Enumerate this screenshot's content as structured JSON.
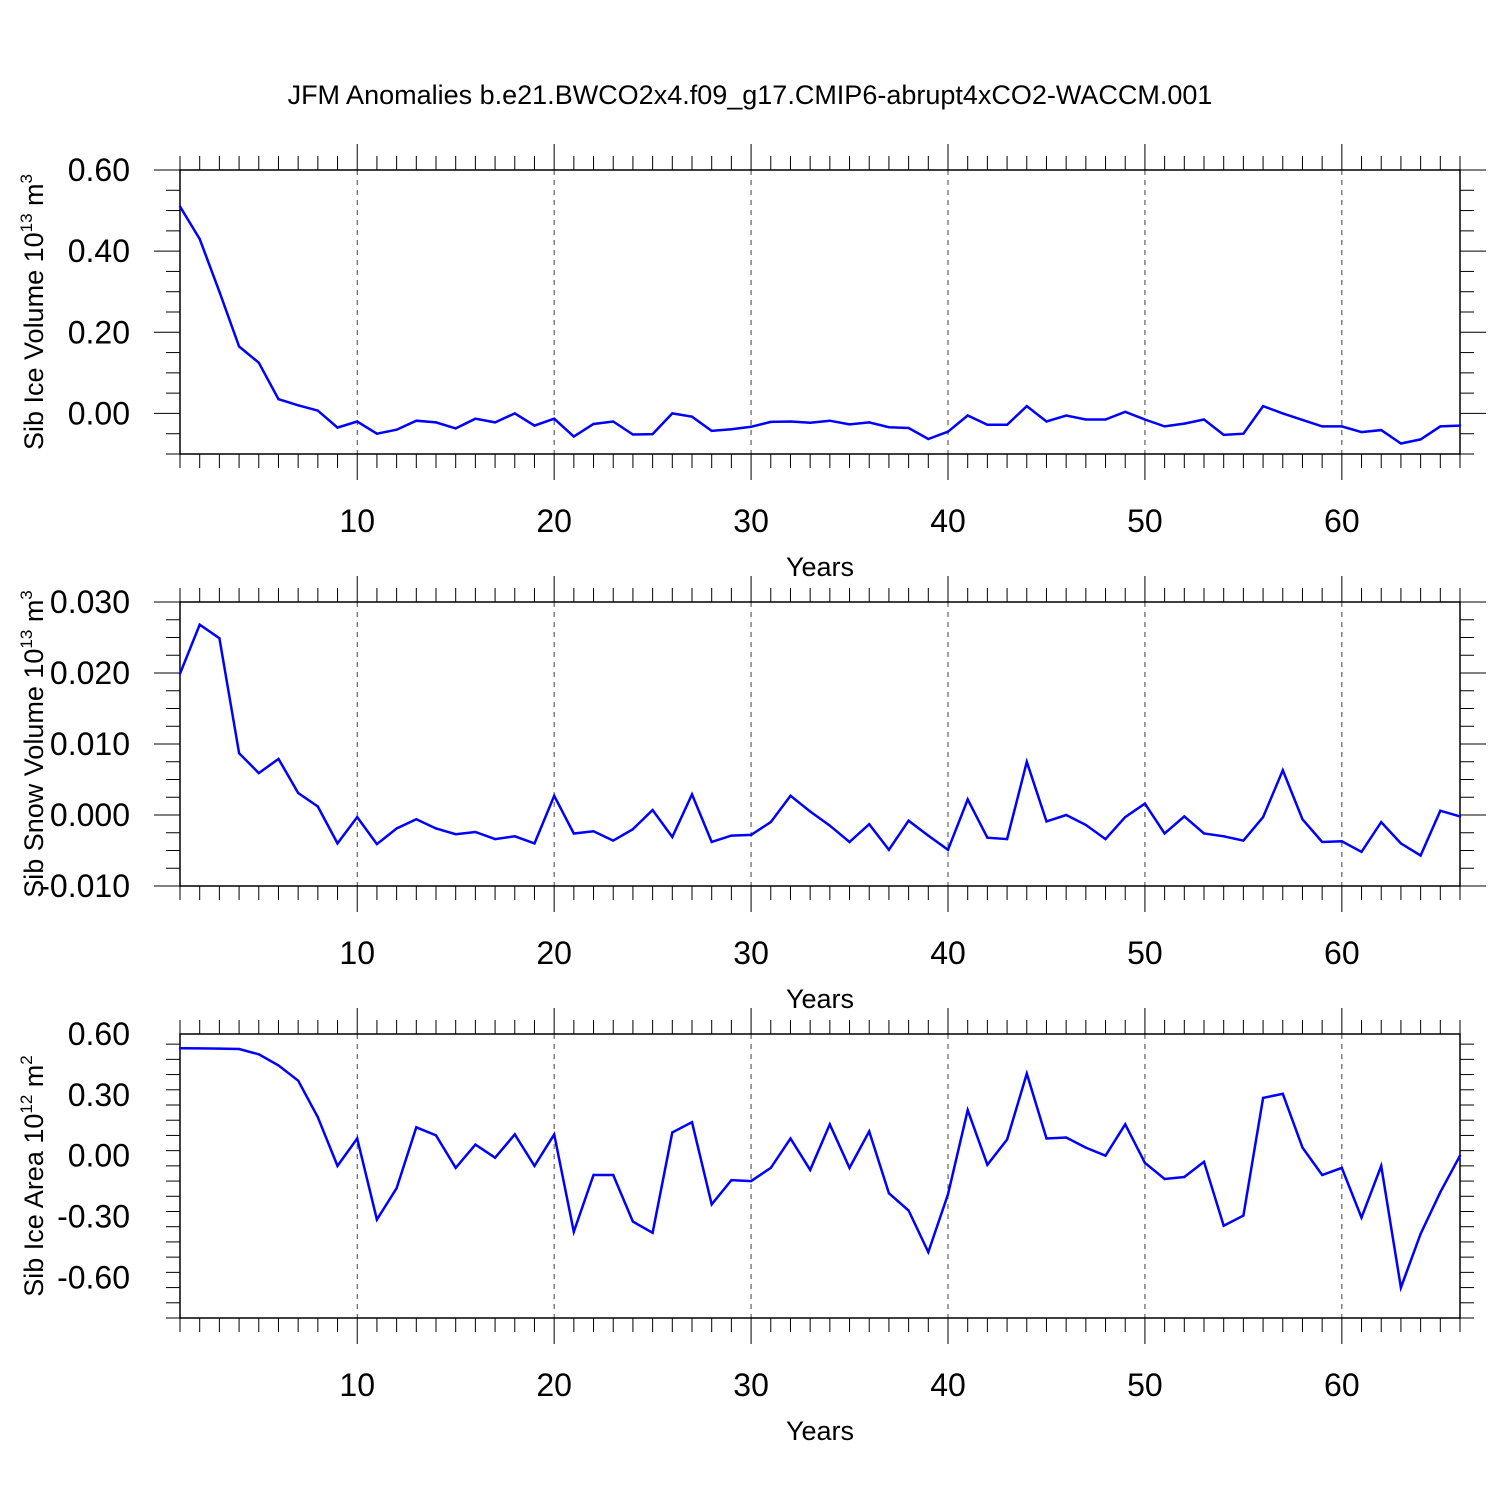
{
  "title": "JFM Anomalies b.e21.BWCO2x4.f09_g17.CMIP6-abrupt4xCO2-WACCM.001",
  "chart_data": [
    {
      "type": "line",
      "title": "",
      "xlabel": "Years",
      "ylabel": "Sib Ice Volume 10",
      "ylabel_sup": "13",
      "ylabel_unit": " m",
      "ylabel_unit_sup": "3",
      "xlim": [
        1,
        66
      ],
      "ylim": [
        -0.1,
        0.6
      ],
      "xticks": [
        10,
        20,
        30,
        40,
        50,
        60
      ],
      "xtick_labels": [
        "10",
        "20",
        "30",
        "40",
        "50",
        "60"
      ],
      "yticks": [
        0.6,
        0.4,
        0.2,
        0.0
      ],
      "ytick_labels": [
        "0.60",
        "0.40",
        "0.20",
        "0.00"
      ],
      "grid": "vertical dashed at labeled x ticks",
      "line_color": "#0000ff",
      "x": [
        1,
        2,
        3,
        4,
        5,
        6,
        7,
        8,
        9,
        10,
        11,
        12,
        13,
        14,
        15,
        16,
        17,
        18,
        19,
        20,
        21,
        22,
        23,
        24,
        25,
        26,
        27,
        28,
        29,
        30,
        31,
        32,
        33,
        34,
        35,
        36,
        37,
        38,
        39,
        40,
        41,
        42,
        43,
        44,
        45,
        46,
        47,
        48,
        49,
        50,
        51,
        52,
        53,
        54,
        55,
        56,
        57,
        58,
        59,
        60,
        61,
        62,
        63,
        64,
        65,
        66
      ],
      "values": [
        0.51,
        0.43,
        0.3,
        0.165,
        0.125,
        0.035,
        0.02,
        0.007,
        -0.035,
        -0.02,
        -0.05,
        -0.04,
        -0.018,
        -0.022,
        -0.037,
        -0.013,
        -0.022,
        0.0,
        -0.03,
        -0.013,
        -0.057,
        -0.026,
        -0.02,
        -0.052,
        -0.051,
        0.0,
        -0.008,
        -0.043,
        -0.039,
        -0.033,
        -0.021,
        -0.02,
        -0.023,
        -0.018,
        -0.027,
        -0.022,
        -0.034,
        -0.036,
        -0.063,
        -0.045,
        -0.005,
        -0.028,
        -0.028,
        0.018,
        -0.02,
        -0.005,
        -0.015,
        -0.015,
        0.004,
        -0.015,
        -0.032,
        -0.025,
        -0.015,
        -0.053,
        -0.05,
        0.018,
        0.0,
        -0.016,
        -0.032,
        -0.032,
        -0.046,
        -0.041,
        -0.074,
        -0.064,
        -0.032,
        -0.03
      ]
    },
    {
      "type": "line",
      "title": "",
      "xlabel": "Years",
      "ylabel": "Sib Snow Volume 10",
      "ylabel_sup": "13",
      "ylabel_unit": " m",
      "ylabel_unit_sup": "3",
      "xlim": [
        1,
        66
      ],
      "ylim": [
        -0.01,
        0.03
      ],
      "xticks": [
        10,
        20,
        30,
        40,
        50,
        60
      ],
      "xtick_labels": [
        "10",
        "20",
        "30",
        "40",
        "50",
        "60"
      ],
      "yticks": [
        0.03,
        0.02,
        0.01,
        0.0,
        -0.01
      ],
      "ytick_labels": [
        "0.030",
        "0.020",
        "0.010",
        "0.000",
        "-0.010"
      ],
      "grid": "vertical dashed at labeled x ticks",
      "line_color": "#0000ff",
      "x": [
        1,
        2,
        3,
        4,
        5,
        6,
        7,
        8,
        9,
        10,
        11,
        12,
        13,
        14,
        15,
        16,
        17,
        18,
        19,
        20,
        21,
        22,
        23,
        24,
        25,
        26,
        27,
        28,
        29,
        30,
        31,
        32,
        33,
        34,
        35,
        36,
        37,
        38,
        39,
        40,
        41,
        42,
        43,
        44,
        45,
        46,
        47,
        48,
        49,
        50,
        51,
        52,
        53,
        54,
        55,
        56,
        57,
        58,
        59,
        60,
        61,
        62,
        63,
        64,
        65,
        66
      ],
      "values": [
        0.0199,
        0.0268,
        0.0249,
        0.0087,
        0.0059,
        0.0079,
        0.0031,
        0.0012,
        -0.004,
        -0.0003,
        -0.0041,
        -0.0019,
        -0.0006,
        -0.0019,
        -0.0027,
        -0.0024,
        -0.0034,
        -0.003,
        -0.004,
        0.0027,
        -0.0026,
        -0.0023,
        -0.0036,
        -0.002,
        0.0007,
        -0.0031,
        0.0029,
        -0.0038,
        -0.0029,
        -0.0028,
        -0.001,
        0.0027,
        0.0005,
        -0.0015,
        -0.0038,
        -0.0013,
        -0.0049,
        -0.0008,
        -0.0029,
        -0.0049,
        0.0022,
        -0.0032,
        -0.0034,
        0.0075,
        -0.0009,
        0.0,
        -0.0014,
        -0.0034,
        -0.0003,
        0.0016,
        -0.0026,
        -0.0002,
        -0.0026,
        -0.003,
        -0.0036,
        -0.0003,
        0.0063,
        -0.0006,
        -0.0038,
        -0.0037,
        -0.0052,
        -0.001,
        -0.004,
        -0.0057,
        0.0006,
        -0.0002
      ]
    },
    {
      "type": "line",
      "title": "",
      "xlabel": "Years",
      "ylabel": "Sib Ice Area 10",
      "ylabel_sup": "12",
      "ylabel_unit": " m",
      "ylabel_unit_sup": "2",
      "xlim": [
        1,
        66
      ],
      "ylim": [
        -0.8,
        0.6
      ],
      "xticks": [
        10,
        20,
        30,
        40,
        50,
        60
      ],
      "xtick_labels": [
        "10",
        "20",
        "30",
        "40",
        "50",
        "60"
      ],
      "yticks": [
        0.6,
        0.3,
        0.0,
        -0.3,
        -0.6
      ],
      "ytick_labels": [
        "0.60",
        "0.30",
        "0.00",
        "-0.30",
        "-0.60"
      ],
      "grid": "vertical dashed at labeled x ticks",
      "line_color": "#0000ff",
      "x": [
        1,
        2,
        3,
        4,
        5,
        6,
        7,
        8,
        9,
        10,
        11,
        12,
        13,
        14,
        15,
        16,
        17,
        18,
        19,
        20,
        21,
        22,
        23,
        24,
        25,
        26,
        27,
        28,
        29,
        30,
        31,
        32,
        33,
        34,
        35,
        36,
        37,
        38,
        39,
        40,
        41,
        42,
        43,
        44,
        45,
        46,
        47,
        48,
        49,
        50,
        51,
        52,
        53,
        54,
        55,
        56,
        57,
        58,
        59,
        60,
        61,
        62,
        63,
        64,
        65,
        66
      ],
      "values": [
        0.53,
        0.529,
        0.528,
        0.526,
        0.5,
        0.445,
        0.37,
        0.19,
        -0.05,
        0.085,
        -0.315,
        -0.16,
        0.14,
        0.1,
        -0.06,
        0.055,
        -0.01,
        0.105,
        -0.05,
        0.105,
        -0.375,
        -0.095,
        -0.095,
        -0.325,
        -0.38,
        0.115,
        0.165,
        -0.24,
        -0.12,
        -0.125,
        -0.06,
        0.085,
        -0.07,
        0.155,
        -0.06,
        0.12,
        -0.185,
        -0.27,
        -0.475,
        -0.19,
        0.225,
        -0.045,
        0.08,
        0.405,
        0.085,
        0.09,
        0.04,
        0.0,
        0.155,
        -0.035,
        -0.115,
        -0.105,
        -0.03,
        -0.345,
        -0.295,
        0.285,
        0.305,
        0.04,
        -0.095,
        -0.06,
        -0.305,
        -0.05,
        -0.65,
        -0.385,
        -0.18,
        0.0
      ]
    }
  ]
}
